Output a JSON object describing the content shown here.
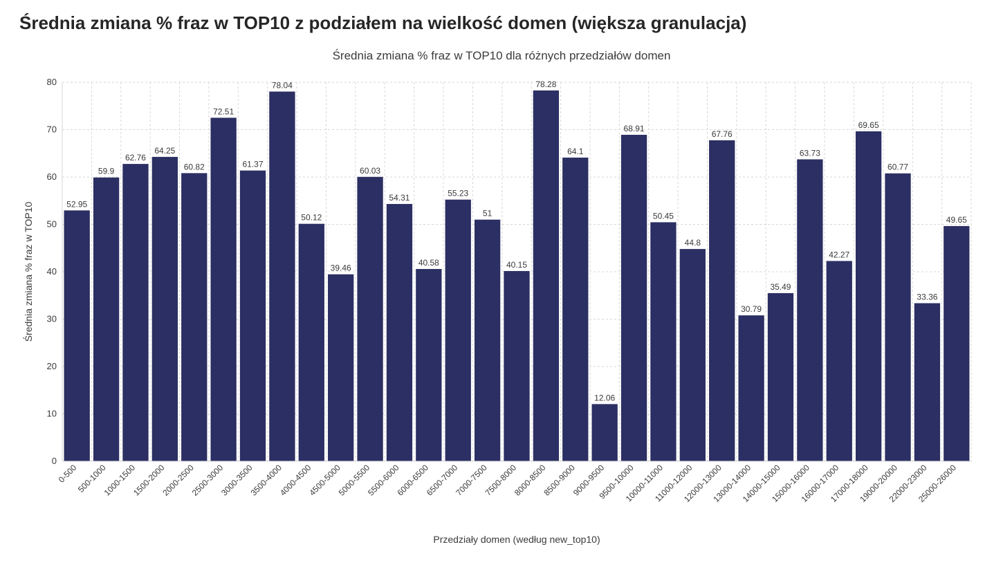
{
  "page_title": "Średnia zmiana % fraz w TOP10 z podziałem na wielkość domen (większa granulacja)",
  "chart": {
    "type": "bar",
    "title": "Średnia zmiana % fraz w TOP10 dla różnych przedziałów domen",
    "ylabel": "Średnia zmiana % fraz w TOP10",
    "xlabel": "Przedziały domen (według new_top10)",
    "title_fontsize": 17,
    "label_fontsize": 14,
    "tick_fontsize": 12,
    "value_label_fontsize": 12,
    "bar_color": "#2b2f63",
    "background_color": "#ffffff",
    "grid_color": "#d6d6d6",
    "axis_color": "#d6d6d6",
    "ylim": [
      0,
      80
    ],
    "ytick_step": 10,
    "bar_gap_ratio": 0.12,
    "xtick_rotation_deg": 45,
    "categories": [
      "0-500",
      "500-1000",
      "1000-1500",
      "1500-2000",
      "2000-2500",
      "2500-3000",
      "3000-3500",
      "3500-4000",
      "4000-4500",
      "4500-5000",
      "5000-5500",
      "5500-6000",
      "6000-6500",
      "6500-7000",
      "7000-7500",
      "7500-8000",
      "8000-8500",
      "8500-9000",
      "9000-9500",
      "9500-10000",
      "10000-11000",
      "11000-12000",
      "12000-13000",
      "13000-14000",
      "14000-15000",
      "15000-16000",
      "16000-17000",
      "17000-18000",
      "19000-20000",
      "22000-23000",
      "25000-26000"
    ],
    "values": [
      52.95,
      59.9,
      62.76,
      64.25,
      60.82,
      72.51,
      61.37,
      78.04,
      50.12,
      39.46,
      60.03,
      54.31,
      40.58,
      55.23,
      51.0,
      40.15,
      78.28,
      64.1,
      12.06,
      68.91,
      50.45,
      44.8,
      67.76,
      30.79,
      35.49,
      63.73,
      42.27,
      69.65,
      60.77,
      33.36,
      49.65
    ]
  }
}
